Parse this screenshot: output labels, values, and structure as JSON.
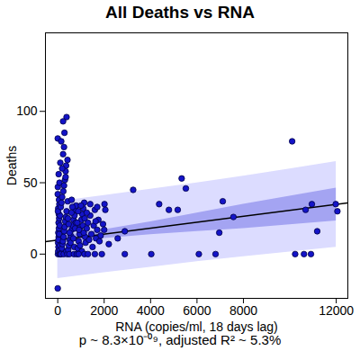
{
  "chart_data": {
    "type": "scatter",
    "title": "All Deaths vs RNA",
    "x_label": "RNA (copies/ml, 18 days lag)",
    "y_label": "Deaths",
    "caption": "p ~ 8.3×10⁻⁰⁹, adjusted R² ~ 5.3%",
    "color": "#1414c8",
    "marker": "circle",
    "xlim": [
      -530,
      12500
    ],
    "ylim": [
      -31,
      155
    ],
    "xticks": [
      0,
      2000,
      4000,
      6000,
      8000,
      12000
    ],
    "yticks": [
      0,
      50,
      100
    ],
    "grid": false,
    "x": [
      10,
      20,
      30,
      15,
      40,
      25,
      50,
      35,
      60,
      45,
      20,
      70,
      55,
      80,
      90,
      100,
      30,
      65,
      85,
      95,
      10,
      0,
      5,
      75,
      40,
      120,
      150,
      180,
      200,
      220,
      250,
      280,
      300,
      320,
      350,
      380,
      130,
      160,
      190,
      240,
      270,
      310,
      340,
      360,
      110,
      230,
      290,
      140,
      260,
      370,
      410,
      450,
      480,
      520,
      560,
      600,
      640,
      680,
      720,
      760,
      790,
      430,
      470,
      510,
      550,
      590,
      630,
      670,
      710,
      750,
      780,
      440,
      500,
      700,
      600,
      820,
      860,
      900,
      940,
      980,
      1020,
      1060,
      1100,
      1140,
      1180,
      840,
      880,
      920,
      960,
      1000,
      1040,
      1080,
      1120,
      1160,
      900,
      1150,
      1200,
      1250,
      1300,
      1350,
      1400,
      1450,
      1500,
      1550,
      1600,
      1650,
      1700,
      1750,
      1800,
      1850,
      1900,
      1950,
      1300,
      1600,
      1400,
      1700,
      1250,
      380,
      230,
      0,
      150,
      270,
      420,
      190,
      340,
      0,
      2015,
      2050,
      1630,
      2000,
      2585,
      2200,
      2890,
      2890,
      3250,
      4370,
      4030,
      4790,
      5170,
      5340,
      5520,
      6800,
      6960,
      7110,
      7570,
      10100,
      10680,
      10950,
      11180,
      11980,
      12050,
      10230,
      10610,
      10910,
      6080
    ],
    "values": [
      0,
      2,
      5,
      8,
      12,
      15,
      18,
      22,
      25,
      28,
      32,
      35,
      38,
      0,
      3,
      6,
      10,
      14,
      20,
      27,
      30,
      42,
      47,
      50,
      56,
      0,
      1,
      4,
      7,
      9,
      12,
      16,
      19,
      23,
      26,
      30,
      33,
      36,
      40,
      44,
      48,
      52,
      58,
      62,
      64,
      70,
      85,
      0,
      0,
      2,
      0,
      3,
      6,
      10,
      13,
      17,
      20,
      24,
      27,
      31,
      34,
      37,
      21,
      15,
      8,
      29,
      33,
      11,
      5,
      18,
      22,
      25,
      0,
      0,
      38,
      0,
      4,
      9,
      14,
      19,
      24,
      28,
      32,
      36,
      12,
      22,
      30,
      17,
      6,
      34,
      2,
      20,
      15,
      25,
      0,
      0,
      8,
      18,
      22,
      10,
      27,
      14,
      5,
      20,
      31,
      11,
      17,
      24,
      9,
      13,
      0,
      21,
      0,
      0,
      35,
      33,
      29,
      96,
      93,
      81,
      79,
      75,
      66,
      60,
      54,
      -24,
      35,
      31,
      23,
      17,
      11,
      7,
      16,
      0,
      45,
      35,
      0,
      31,
      31,
      53,
      46,
      0,
      15,
      37,
      26,
      79,
      31,
      35,
      16,
      35,
      30,
      0,
      0,
      0,
      0
    ],
    "fit_line": {
      "x": [
        -530,
        12500
      ],
      "y": [
        8.7,
        35.8
      ]
    },
    "confidence_band": {
      "x": [
        0,
        2000,
        4000,
        6000,
        8000,
        10000,
        12000
      ],
      "lower": [
        7.3,
        11.0,
        13.6,
        15.8,
        17.9,
        20.6,
        23.3
      ],
      "upper": [
        12.3,
        17.0,
        22.6,
        28.8,
        34.9,
        40.6,
        46.3
      ]
    },
    "prediction_band": {
      "x": [
        0,
        2000,
        4000,
        6000,
        8000,
        10000,
        12000
      ],
      "lower": [
        -17.2,
        -13.0,
        -9.2,
        -5.3,
        -1.8,
        1.5,
        4.8
      ],
      "upper": [
        36.8,
        41.0,
        45.4,
        49.9,
        54.6,
        59.7,
        64.8
      ]
    }
  }
}
